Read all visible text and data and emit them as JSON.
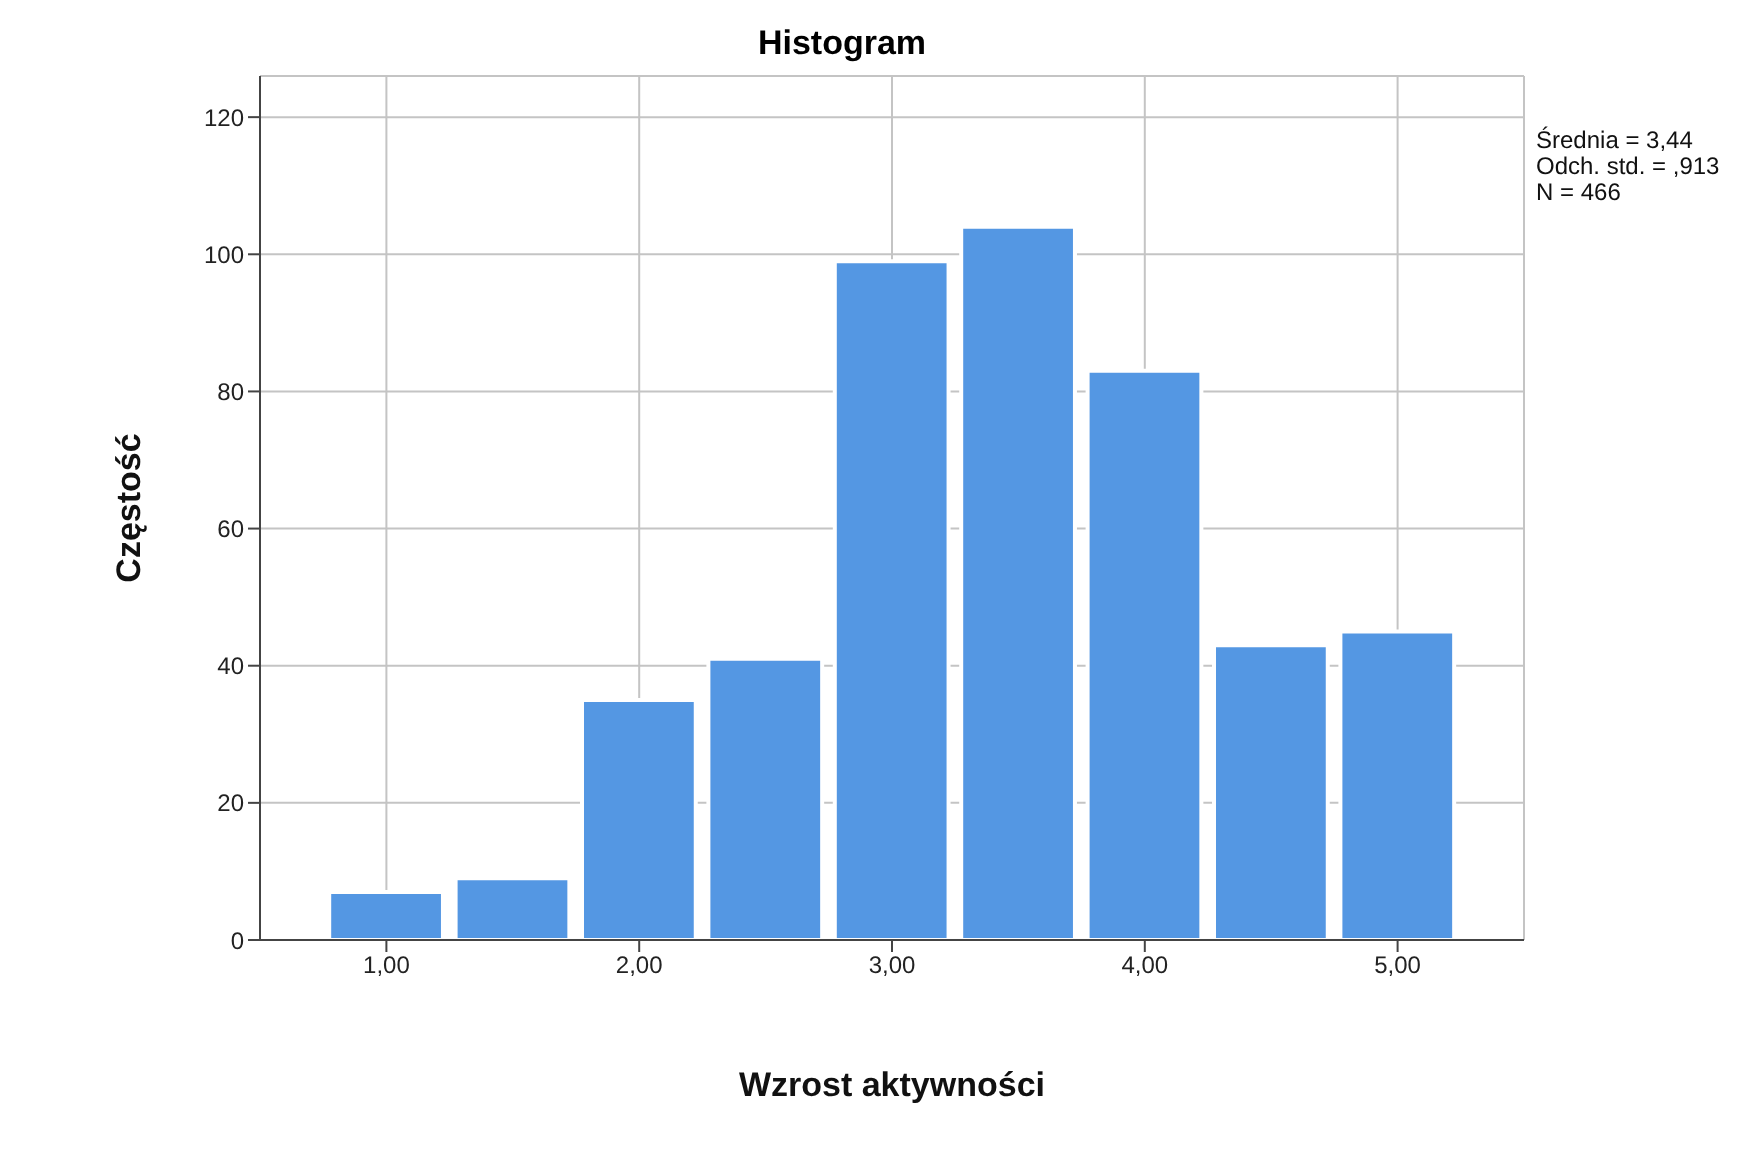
{
  "chart_data": {
    "type": "histogram",
    "title": "Histogram",
    "xlabel": "Wzrost aktywności",
    "ylabel": "Częstość",
    "bins": [
      0.75,
      1.25,
      1.75,
      2.25,
      2.75,
      3.25,
      3.75,
      4.25,
      4.75,
      5.25
    ],
    "values": [
      7,
      9,
      35,
      41,
      99,
      104,
      83,
      43,
      45
    ],
    "color": "#5497e3",
    "xlim": [
      0.5,
      5.5
    ],
    "xticks": [
      {
        "value": 1,
        "label": "1,00"
      },
      {
        "value": 2,
        "label": "2,00"
      },
      {
        "value": 3,
        "label": "3,00"
      },
      {
        "value": 4,
        "label": "4,00"
      },
      {
        "value": 5,
        "label": "5,00"
      }
    ],
    "ylim": [
      0,
      126
    ],
    "yticks": [
      0,
      20,
      40,
      60,
      80,
      100,
      120
    ],
    "grid": true,
    "annotations": [
      "Średnia = 3,44",
      "Odch. std. = ,913",
      "N = 466"
    ]
  }
}
